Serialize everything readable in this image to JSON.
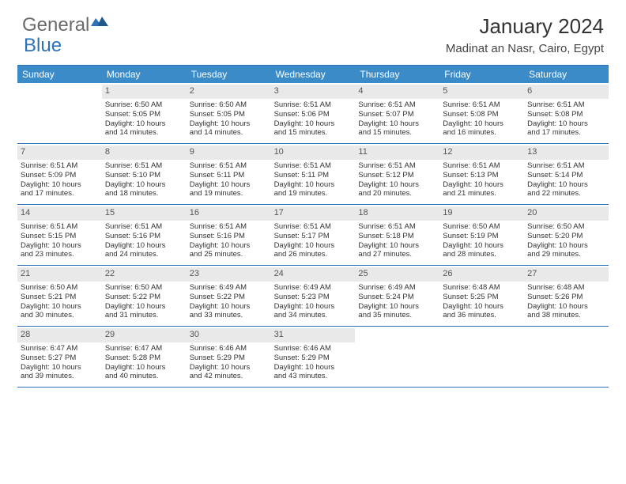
{
  "brand": {
    "part1": "General",
    "part2": "Blue"
  },
  "title": "January 2024",
  "location": "Madinat an Nasr, Cairo, Egypt",
  "colors": {
    "header_bg": "#3b8bc9",
    "border": "#2d72b8",
    "daynum_bg": "#e9e9e9",
    "text": "#333333",
    "background": "#ffffff"
  },
  "day_names": [
    "Sunday",
    "Monday",
    "Tuesday",
    "Wednesday",
    "Thursday",
    "Friday",
    "Saturday"
  ],
  "calendar": {
    "type": "table",
    "weeks": [
      [
        {
          "empty": true
        },
        {
          "n": "1",
          "sr": "6:50 AM",
          "ss": "5:05 PM",
          "dl1": "10 hours",
          "dl2": "and 14 minutes."
        },
        {
          "n": "2",
          "sr": "6:50 AM",
          "ss": "5:05 PM",
          "dl1": "10 hours",
          "dl2": "and 14 minutes."
        },
        {
          "n": "3",
          "sr": "6:51 AM",
          "ss": "5:06 PM",
          "dl1": "10 hours",
          "dl2": "and 15 minutes."
        },
        {
          "n": "4",
          "sr": "6:51 AM",
          "ss": "5:07 PM",
          "dl1": "10 hours",
          "dl2": "and 15 minutes."
        },
        {
          "n": "5",
          "sr": "6:51 AM",
          "ss": "5:08 PM",
          "dl1": "10 hours",
          "dl2": "and 16 minutes."
        },
        {
          "n": "6",
          "sr": "6:51 AM",
          "ss": "5:08 PM",
          "dl1": "10 hours",
          "dl2": "and 17 minutes."
        }
      ],
      [
        {
          "n": "7",
          "sr": "6:51 AM",
          "ss": "5:09 PM",
          "dl1": "10 hours",
          "dl2": "and 17 minutes."
        },
        {
          "n": "8",
          "sr": "6:51 AM",
          "ss": "5:10 PM",
          "dl1": "10 hours",
          "dl2": "and 18 minutes."
        },
        {
          "n": "9",
          "sr": "6:51 AM",
          "ss": "5:11 PM",
          "dl1": "10 hours",
          "dl2": "and 19 minutes."
        },
        {
          "n": "10",
          "sr": "6:51 AM",
          "ss": "5:11 PM",
          "dl1": "10 hours",
          "dl2": "and 19 minutes."
        },
        {
          "n": "11",
          "sr": "6:51 AM",
          "ss": "5:12 PM",
          "dl1": "10 hours",
          "dl2": "and 20 minutes."
        },
        {
          "n": "12",
          "sr": "6:51 AM",
          "ss": "5:13 PM",
          "dl1": "10 hours",
          "dl2": "and 21 minutes."
        },
        {
          "n": "13",
          "sr": "6:51 AM",
          "ss": "5:14 PM",
          "dl1": "10 hours",
          "dl2": "and 22 minutes."
        }
      ],
      [
        {
          "n": "14",
          "sr": "6:51 AM",
          "ss": "5:15 PM",
          "dl1": "10 hours",
          "dl2": "and 23 minutes."
        },
        {
          "n": "15",
          "sr": "6:51 AM",
          "ss": "5:16 PM",
          "dl1": "10 hours",
          "dl2": "and 24 minutes."
        },
        {
          "n": "16",
          "sr": "6:51 AM",
          "ss": "5:16 PM",
          "dl1": "10 hours",
          "dl2": "and 25 minutes."
        },
        {
          "n": "17",
          "sr": "6:51 AM",
          "ss": "5:17 PM",
          "dl1": "10 hours",
          "dl2": "and 26 minutes."
        },
        {
          "n": "18",
          "sr": "6:51 AM",
          "ss": "5:18 PM",
          "dl1": "10 hours",
          "dl2": "and 27 minutes."
        },
        {
          "n": "19",
          "sr": "6:50 AM",
          "ss": "5:19 PM",
          "dl1": "10 hours",
          "dl2": "and 28 minutes."
        },
        {
          "n": "20",
          "sr": "6:50 AM",
          "ss": "5:20 PM",
          "dl1": "10 hours",
          "dl2": "and 29 minutes."
        }
      ],
      [
        {
          "n": "21",
          "sr": "6:50 AM",
          "ss": "5:21 PM",
          "dl1": "10 hours",
          "dl2": "and 30 minutes."
        },
        {
          "n": "22",
          "sr": "6:50 AM",
          "ss": "5:22 PM",
          "dl1": "10 hours",
          "dl2": "and 31 minutes."
        },
        {
          "n": "23",
          "sr": "6:49 AM",
          "ss": "5:22 PM",
          "dl1": "10 hours",
          "dl2": "and 33 minutes."
        },
        {
          "n": "24",
          "sr": "6:49 AM",
          "ss": "5:23 PM",
          "dl1": "10 hours",
          "dl2": "and 34 minutes."
        },
        {
          "n": "25",
          "sr": "6:49 AM",
          "ss": "5:24 PM",
          "dl1": "10 hours",
          "dl2": "and 35 minutes."
        },
        {
          "n": "26",
          "sr": "6:48 AM",
          "ss": "5:25 PM",
          "dl1": "10 hours",
          "dl2": "and 36 minutes."
        },
        {
          "n": "27",
          "sr": "6:48 AM",
          "ss": "5:26 PM",
          "dl1": "10 hours",
          "dl2": "and 38 minutes."
        }
      ],
      [
        {
          "n": "28",
          "sr": "6:47 AM",
          "ss": "5:27 PM",
          "dl1": "10 hours",
          "dl2": "and 39 minutes."
        },
        {
          "n": "29",
          "sr": "6:47 AM",
          "ss": "5:28 PM",
          "dl1": "10 hours",
          "dl2": "and 40 minutes."
        },
        {
          "n": "30",
          "sr": "6:46 AM",
          "ss": "5:29 PM",
          "dl1": "10 hours",
          "dl2": "and 42 minutes."
        },
        {
          "n": "31",
          "sr": "6:46 AM",
          "ss": "5:29 PM",
          "dl1": "10 hours",
          "dl2": "and 43 minutes."
        },
        {
          "empty": true
        },
        {
          "empty": true
        },
        {
          "empty": true
        }
      ]
    ]
  },
  "labels": {
    "sunrise": "Sunrise:",
    "sunset": "Sunset:",
    "daylight": "Daylight:"
  }
}
